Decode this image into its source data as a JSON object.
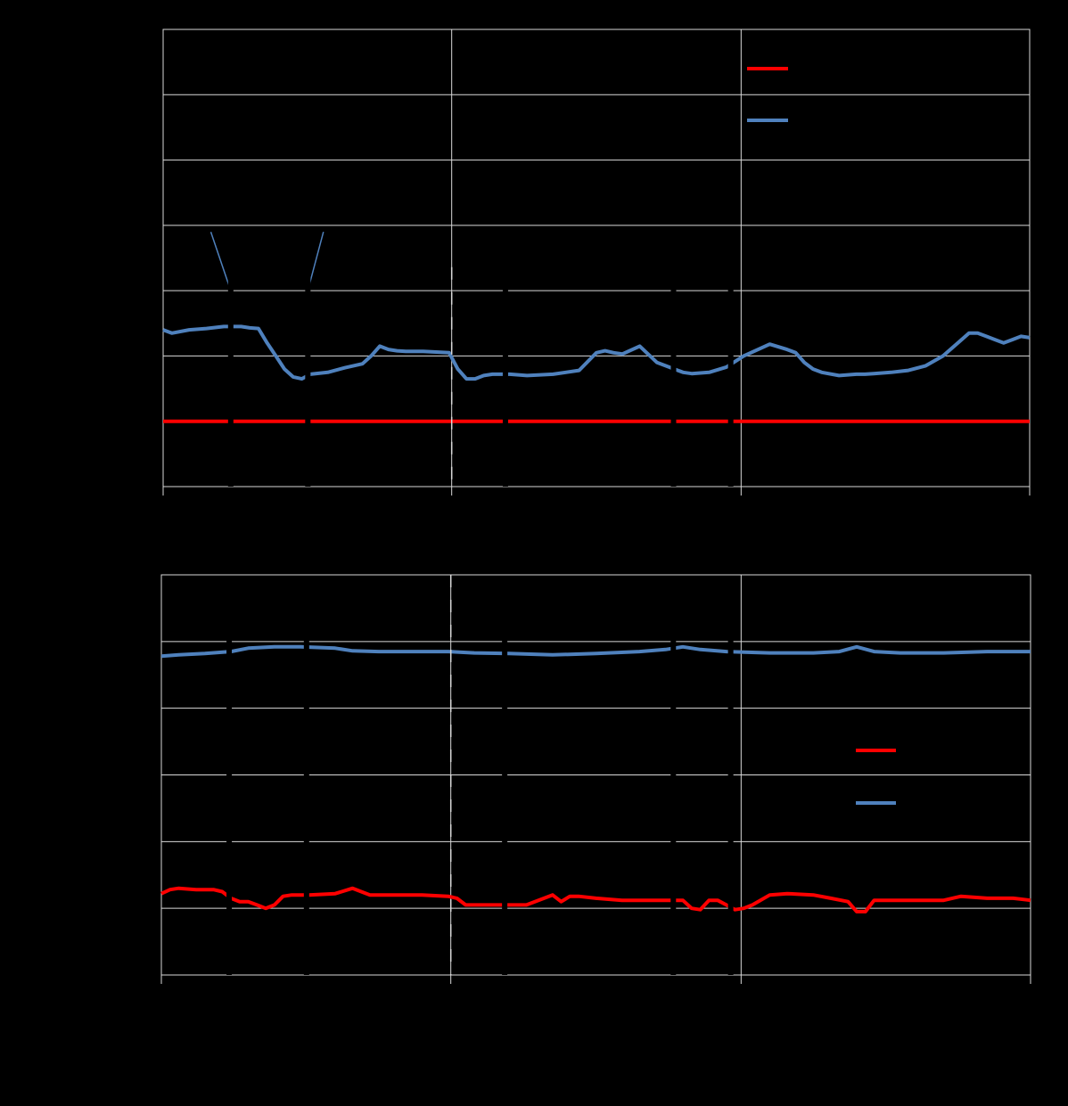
{
  "figure": {
    "background": "#000000"
  },
  "chart_data": [
    {
      "type": "line",
      "grid": true,
      "legend_position": "top-right",
      "xlim": [
        0,
        1
      ],
      "ylim": [
        0,
        7
      ],
      "vertical_gridlines_at": [
        0.333,
        0.667
      ],
      "dashed_markers_at": [
        0.333
      ],
      "gaps_at": [
        0.078,
        0.167,
        0.395,
        0.589,
        0.655
      ],
      "series": [
        {
          "color": "#ff0000",
          "x": [
            0,
            0.5,
            1
          ],
          "y": [
            1.0,
            1.0,
            1.0
          ]
        },
        {
          "color": "#4f81bd",
          "x": [
            0,
            0.01,
            0.03,
            0.05,
            0.07,
            0.09,
            0.1,
            0.11,
            0.12,
            0.13,
            0.14,
            0.15,
            0.16,
            0.17,
            0.19,
            0.21,
            0.23,
            0.24,
            0.25,
            0.26,
            0.27,
            0.28,
            0.3,
            0.33,
            0.34,
            0.35,
            0.36,
            0.37,
            0.38,
            0.4,
            0.42,
            0.45,
            0.48,
            0.5,
            0.51,
            0.52,
            0.53,
            0.55,
            0.57,
            0.59,
            0.6,
            0.61,
            0.63,
            0.65,
            0.67,
            0.7,
            0.72,
            0.73,
            0.74,
            0.75,
            0.76,
            0.78,
            0.8,
            0.81,
            0.82,
            0.84,
            0.86,
            0.88,
            0.9,
            0.93,
            0.94,
            0.95,
            0.96,
            0.97,
            0.98,
            0.99,
            1.0
          ],
          "y": [
            2.4,
            2.35,
            2.4,
            2.42,
            2.45,
            2.45,
            2.43,
            2.42,
            2.2,
            2.0,
            1.8,
            1.68,
            1.65,
            1.72,
            1.75,
            1.82,
            1.88,
            2.0,
            2.15,
            2.1,
            2.08,
            2.07,
            2.07,
            2.05,
            1.8,
            1.65,
            1.65,
            1.7,
            1.72,
            1.72,
            1.7,
            1.72,
            1.78,
            2.05,
            2.08,
            2.05,
            2.03,
            2.15,
            1.9,
            1.8,
            1.75,
            1.73,
            1.75,
            1.83,
            2.0,
            2.18,
            2.1,
            2.05,
            1.9,
            1.8,
            1.75,
            1.7,
            1.72,
            1.72,
            1.73,
            1.75,
            1.78,
            1.85,
            2.0,
            2.35,
            2.35,
            2.3,
            2.25,
            2.2,
            2.25,
            2.3,
            2.28
          ]
        },
        {
          "color": "#4f81bd",
          "x": [
            0.055,
            0.078
          ],
          "y": [
            3.9,
            3.0
          ]
        },
        {
          "color": "#4f81bd",
          "x": [
            0.167,
            0.185
          ],
          "y": [
            3.0,
            3.9
          ]
        }
      ]
    },
    {
      "type": "line",
      "grid": true,
      "legend_position": "right",
      "xlim": [
        0,
        1
      ],
      "ylim": [
        0,
        6
      ],
      "vertical_gridlines_at": [
        0.333,
        0.667
      ],
      "dashed_markers_at": [
        0.333
      ],
      "gaps_at": [
        0.078,
        0.167,
        0.395,
        0.589,
        0.655
      ],
      "series": [
        {
          "color": "#ff0000",
          "x": [
            0,
            0.01,
            0.02,
            0.04,
            0.06,
            0.07,
            0.08,
            0.09,
            0.1,
            0.11,
            0.12,
            0.13,
            0.14,
            0.15,
            0.16,
            0.17,
            0.2,
            0.22,
            0.24,
            0.25,
            0.26,
            0.3,
            0.33,
            0.34,
            0.35,
            0.36,
            0.38,
            0.42,
            0.45,
            0.46,
            0.47,
            0.48,
            0.5,
            0.53,
            0.56,
            0.6,
            0.61,
            0.62,
            0.63,
            0.64,
            0.65,
            0.66,
            0.67,
            0.68,
            0.7,
            0.72,
            0.75,
            0.77,
            0.79,
            0.8,
            0.81,
            0.82,
            0.84,
            0.86,
            0.9,
            0.92,
            0.95,
            0.98,
            1.0
          ],
          "y": [
            1.22,
            1.28,
            1.3,
            1.28,
            1.28,
            1.25,
            1.15,
            1.1,
            1.1,
            1.05,
            1.0,
            1.05,
            1.18,
            1.2,
            1.2,
            1.2,
            1.22,
            1.3,
            1.2,
            1.2,
            1.2,
            1.2,
            1.18,
            1.15,
            1.05,
            1.05,
            1.05,
            1.05,
            1.2,
            1.1,
            1.18,
            1.18,
            1.15,
            1.12,
            1.12,
            1.12,
            1.0,
            0.98,
            1.12,
            1.12,
            1.05,
            0.98,
            1.0,
            1.05,
            1.2,
            1.22,
            1.2,
            1.15,
            1.1,
            0.95,
            0.95,
            1.12,
            1.12,
            1.12,
            1.12,
            1.18,
            1.15,
            1.15,
            1.12
          ]
        },
        {
          "color": "#4f81bd",
          "x": [
            0,
            0.02,
            0.05,
            0.08,
            0.1,
            0.13,
            0.16,
            0.2,
            0.22,
            0.25,
            0.3,
            0.33,
            0.36,
            0.4,
            0.45,
            0.5,
            0.55,
            0.58,
            0.6,
            0.62,
            0.65,
            0.7,
            0.75,
            0.78,
            0.8,
            0.82,
            0.85,
            0.9,
            0.95,
            1.0
          ],
          "y": [
            4.78,
            4.8,
            4.82,
            4.85,
            4.9,
            4.92,
            4.92,
            4.9,
            4.86,
            4.85,
            4.85,
            4.85,
            4.83,
            4.82,
            4.8,
            4.82,
            4.85,
            4.88,
            4.92,
            4.88,
            4.85,
            4.83,
            4.83,
            4.85,
            4.92,
            4.85,
            4.83,
            4.83,
            4.85,
            4.85
          ]
        }
      ]
    }
  ]
}
